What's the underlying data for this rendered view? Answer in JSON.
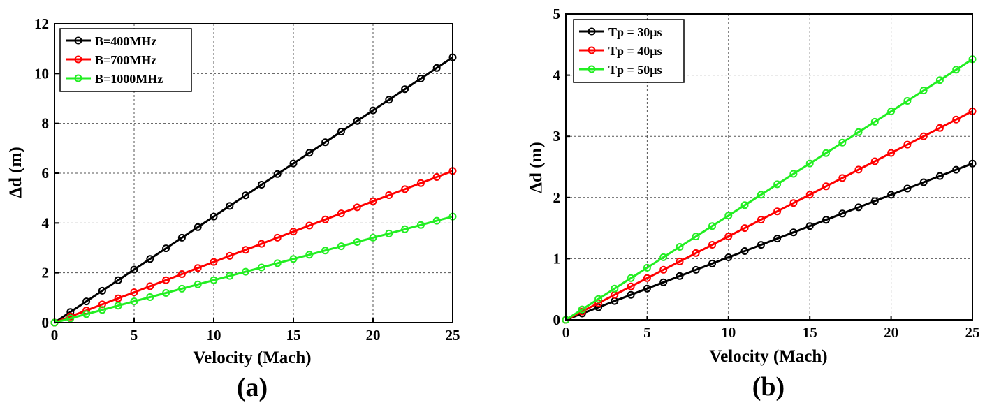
{
  "chart_data": [
    {
      "type": "line",
      "panel_label": "(a)",
      "xlabel": "Velocity (Mach)",
      "ylabel": "Δd (m)",
      "xlim": [
        0,
        25
      ],
      "ylim": [
        0,
        12
      ],
      "xticks": [
        0,
        5,
        10,
        15,
        20,
        25
      ],
      "yticks": [
        0,
        2,
        4,
        6,
        8,
        10,
        12
      ],
      "grid": true,
      "legend_position": "top-left",
      "x": [
        0,
        1,
        2,
        3,
        4,
        5,
        6,
        7,
        8,
        9,
        10,
        11,
        12,
        13,
        14,
        15,
        16,
        17,
        18,
        19,
        20,
        21,
        22,
        23,
        24,
        25
      ],
      "series": [
        {
          "name": "B=400MHz",
          "color": "#000000",
          "slope": 0.426
        },
        {
          "name": "B=700MHz",
          "color": "#ff0000",
          "slope": 0.2436
        },
        {
          "name": "B=1000MHz",
          "color": "#22ee22",
          "slope": 0.1704
        }
      ]
    },
    {
      "type": "line",
      "panel_label": "(b)",
      "xlabel": "Velocity (Mach)",
      "ylabel": "Δd (m)",
      "xlim": [
        0,
        25
      ],
      "ylim": [
        0,
        5
      ],
      "xticks": [
        0,
        5,
        10,
        15,
        20,
        25
      ],
      "yticks": [
        0,
        1,
        2,
        3,
        4,
        5
      ],
      "grid": true,
      "legend_position": "top-left",
      "x": [
        0,
        1,
        2,
        3,
        4,
        5,
        6,
        7,
        8,
        9,
        10,
        11,
        12,
        13,
        14,
        15,
        16,
        17,
        18,
        19,
        20,
        21,
        22,
        23,
        24,
        25
      ],
      "series": [
        {
          "name": "Tp = 30μs",
          "color": "#000000",
          "slope": 0.1022
        },
        {
          "name": "Tp = 40μs",
          "color": "#ff0000",
          "slope": 0.1364
        },
        {
          "name": "Tp = 50μs",
          "color": "#22ee22",
          "slope": 0.1704
        }
      ]
    }
  ]
}
